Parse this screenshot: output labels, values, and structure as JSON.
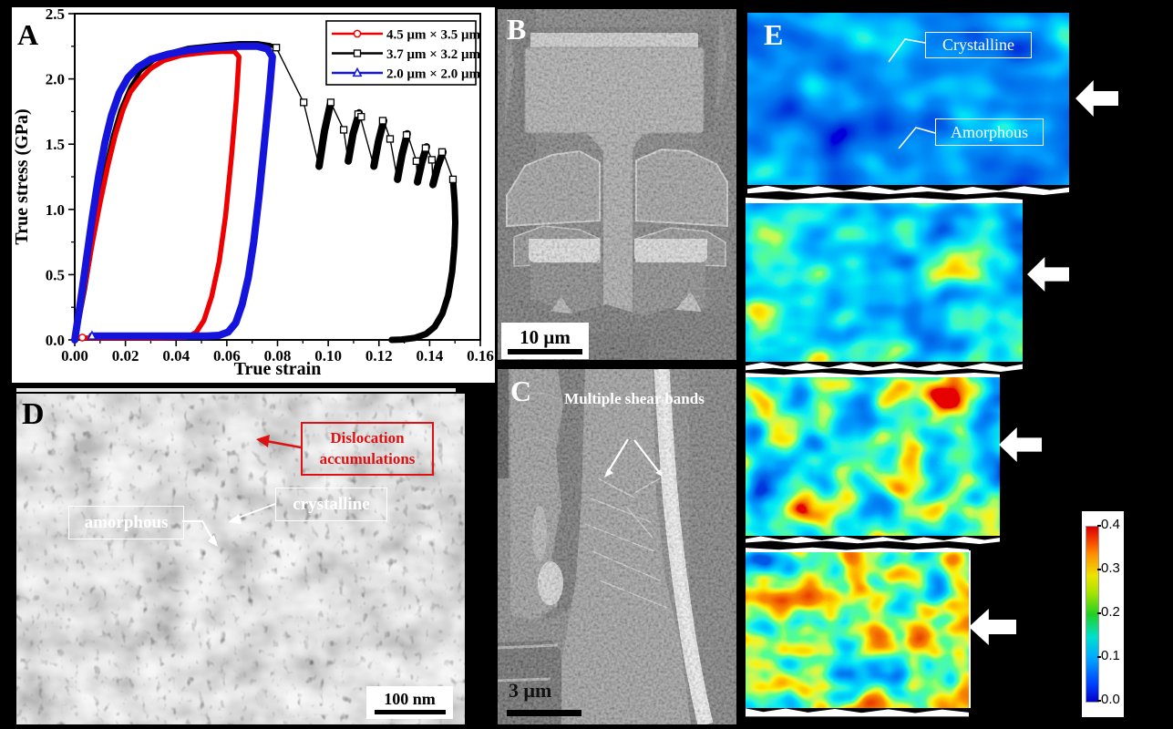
{
  "figure": {
    "panels": {
      "a": {
        "label": "A"
      },
      "b": {
        "label": "B",
        "scale_bar_label": "10 μm"
      },
      "c": {
        "label": "C",
        "annotation": "Multiple shear bands",
        "scale_bar_label": "3 μm"
      },
      "d": {
        "label": "D",
        "dislocation_label": "Dislocation accumulations",
        "crystalline_label": "crystalline",
        "amorphous_label": "amorphous",
        "scale_bar_label": "100 nm",
        "dislocation_color": "#dd1111"
      },
      "e": {
        "label": "E",
        "crystalline_label": "Crystalline",
        "amorphous_label": "Amorphous",
        "colorbar": {
          "min": 0.0,
          "max": 0.4,
          "ticks": [
            "0.4",
            "0.3",
            "0.2",
            "0.1",
            "0.0"
          ]
        }
      }
    }
  },
  "chart_data": {
    "type": "line",
    "title": "",
    "xlabel": "True strain",
    "ylabel": "True stress (GPa)",
    "xlim": [
      0,
      0.16
    ],
    "ylim": [
      0,
      2.5
    ],
    "grid": false,
    "xticks": [
      0,
      0.02,
      0.04,
      0.06,
      0.08,
      0.1,
      0.12,
      0.14,
      0.16
    ],
    "xtick_labels": [
      "0.00",
      "0.02",
      "0.04",
      "0.06",
      "0.08",
      "0.10",
      "0.12",
      "0.14",
      "0.16"
    ],
    "yticks": [
      0,
      0.5,
      1.0,
      1.5,
      2.0,
      2.5
    ],
    "ytick_labels": [
      "0.0",
      "0.5",
      "1.0",
      "1.5",
      "2.0",
      "2.5"
    ],
    "legend": {
      "position": "top-right",
      "entries": [
        {
          "label": "4.5 μm × 3.5 μm",
          "color": "#ee0000",
          "marker": "circle"
        },
        {
          "label": "3.7 μm × 3.2 μm",
          "color": "#000000",
          "marker": "square"
        },
        {
          "label": "2.0 μm × 2.0 μm",
          "color": "#1414dd",
          "marker": "triangle"
        }
      ]
    },
    "series": [
      {
        "name": "3.7um-loading",
        "color": "#000000",
        "width": 4.5,
        "points": [
          [
            0,
            0
          ],
          [
            0.002,
            0.18
          ],
          [
            0.004,
            0.38
          ],
          [
            0.006,
            0.62
          ],
          [
            0.009,
            0.98
          ],
          [
            0.012,
            1.3
          ],
          [
            0.015,
            1.56
          ],
          [
            0.018,
            1.76
          ],
          [
            0.022,
            1.94
          ],
          [
            0.026,
            2.06
          ],
          [
            0.031,
            2.14
          ],
          [
            0.037,
            2.2
          ],
          [
            0.045,
            2.24
          ],
          [
            0.055,
            2.26
          ],
          [
            0.065,
            2.275
          ],
          [
            0.072,
            2.275
          ],
          [
            0.077,
            2.26
          ],
          [
            0.0795,
            2.24
          ]
        ]
      },
      {
        "name": "3.7um-serration-line",
        "color": "#000000",
        "width": 1.4,
        "points": [
          [
            0.0795,
            2.24
          ],
          [
            0.0903,
            1.82
          ],
          [
            0.0964,
            1.33
          ],
          [
            0.101,
            1.82
          ],
          [
            0.1061,
            1.61
          ],
          [
            0.1079,
            1.37
          ],
          [
            0.1122,
            1.74
          ],
          [
            0.118,
            1.33
          ],
          [
            0.1219,
            1.68
          ],
          [
            0.1244,
            1.54
          ],
          [
            0.1273,
            1.23
          ],
          [
            0.1312,
            1.58
          ],
          [
            0.1348,
            1.37
          ],
          [
            0.1352,
            1.21
          ],
          [
            0.1388,
            1.48
          ],
          [
            0.1409,
            1.38
          ],
          [
            0.1413,
            1.19
          ],
          [
            0.1453,
            1.44
          ],
          [
            0.1492,
            1.23
          ]
        ]
      },
      {
        "name": "3.7um-strain-bursts",
        "color": "#000000",
        "width": 8,
        "points": [
          [
            [
              0.0964,
              1.33
            ],
            [
              0.0985,
              1.6
            ],
            [
              0.101,
              1.82
            ]
          ],
          [
            [
              0.1079,
              1.37
            ],
            [
              0.1098,
              1.58
            ],
            [
              0.1122,
              1.74
            ]
          ],
          [
            [
              0.118,
              1.33
            ],
            [
              0.1198,
              1.52
            ],
            [
              0.1219,
              1.68
            ]
          ],
          [
            [
              0.1273,
              1.23
            ],
            [
              0.1291,
              1.42
            ],
            [
              0.1312,
              1.58
            ]
          ],
          [
            [
              0.1352,
              1.21
            ],
            [
              0.1369,
              1.36
            ],
            [
              0.1388,
              1.48
            ]
          ],
          [
            [
              0.1413,
              1.19
            ],
            [
              0.1432,
              1.33
            ],
            [
              0.1453,
              1.44
            ]
          ]
        ]
      },
      {
        "name": "3.7um-unloading",
        "color": "#000000",
        "width": 7,
        "points": [
          [
            0.1492,
            1.23
          ],
          [
            0.1499,
            1.05
          ],
          [
            0.1501,
            0.9
          ],
          [
            0.1498,
            0.72
          ],
          [
            0.1489,
            0.52
          ],
          [
            0.1473,
            0.34
          ],
          [
            0.145,
            0.2
          ],
          [
            0.142,
            0.1
          ],
          [
            0.1385,
            0.045
          ],
          [
            0.134,
            0.015
          ],
          [
            0.129,
            0.003
          ],
          [
            0.125,
            0
          ]
        ]
      },
      {
        "name": "4.5um-loop",
        "color": "#ee0000",
        "width": 5.5,
        "points": [
          [
            0,
            0
          ],
          [
            0.002,
            0.2
          ],
          [
            0.004,
            0.42
          ],
          [
            0.007,
            0.75
          ],
          [
            0.01,
            1.05
          ],
          [
            0.013,
            1.33
          ],
          [
            0.016,
            1.57
          ],
          [
            0.019,
            1.76
          ],
          [
            0.022,
            1.9
          ],
          [
            0.026,
            2.0
          ],
          [
            0.03,
            2.08
          ],
          [
            0.035,
            2.14
          ],
          [
            0.042,
            2.18
          ],
          [
            0.05,
            2.2
          ],
          [
            0.058,
            2.21
          ],
          [
            0.063,
            2.21
          ],
          [
            0.0648,
            2.17
          ],
          [
            0.0638,
            1.85
          ],
          [
            0.0618,
            1.4
          ],
          [
            0.0595,
            0.95
          ],
          [
            0.057,
            0.6
          ],
          [
            0.054,
            0.33
          ],
          [
            0.051,
            0.15
          ],
          [
            0.048,
            0.06
          ],
          [
            0.045,
            0.025
          ],
          [
            0.0435,
            0.018
          ],
          [
            0.035,
            0.015
          ],
          [
            0.02,
            0.015
          ],
          [
            0.008,
            0.015
          ],
          [
            0.003,
            0.015
          ]
        ]
      },
      {
        "name": "2.0um-loop",
        "color": "#1414dd",
        "width": 8,
        "points": [
          [
            0,
            0
          ],
          [
            0.0022,
            0.28
          ],
          [
            0.0045,
            0.6
          ],
          [
            0.007,
            0.95
          ],
          [
            0.0095,
            1.26
          ],
          [
            0.012,
            1.52
          ],
          [
            0.0145,
            1.72
          ],
          [
            0.0175,
            1.89
          ],
          [
            0.021,
            2.01
          ],
          [
            0.025,
            2.09
          ],
          [
            0.03,
            2.15
          ],
          [
            0.037,
            2.19
          ],
          [
            0.045,
            2.22
          ],
          [
            0.055,
            2.24
          ],
          [
            0.065,
            2.25
          ],
          [
            0.072,
            2.25
          ],
          [
            0.076,
            2.23
          ],
          [
            0.078,
            2.17
          ],
          [
            0.0768,
            1.9
          ],
          [
            0.0748,
            1.5
          ],
          [
            0.0727,
            1.1
          ],
          [
            0.0706,
            0.75
          ],
          [
            0.0685,
            0.48
          ],
          [
            0.066,
            0.27
          ],
          [
            0.0635,
            0.13
          ],
          [
            0.0605,
            0.06
          ],
          [
            0.057,
            0.035
          ],
          [
            0.052,
            0.03
          ],
          [
            0.045,
            0.03
          ],
          [
            0.035,
            0.03
          ],
          [
            0.022,
            0.03
          ],
          [
            0.012,
            0.03
          ],
          [
            0.0068,
            0.03
          ]
        ]
      },
      {
        "name": "3.7um-serration-markers",
        "color": "#000000",
        "width": 0,
        "marker": "square",
        "markers": [
          [
            0.0795,
            2.24
          ],
          [
            0.0903,
            1.82
          ],
          [
            0.101,
            1.82
          ],
          [
            0.1061,
            1.61
          ],
          [
            0.1118,
            1.73
          ],
          [
            0.113,
            1.71
          ],
          [
            0.1215,
            1.68
          ],
          [
            0.1244,
            1.54
          ],
          [
            0.1309,
            1.57
          ],
          [
            0.1348,
            1.37
          ],
          [
            0.1384,
            1.47
          ],
          [
            0.1409,
            1.38
          ],
          [
            0.1449,
            1.44
          ],
          [
            0.1492,
            1.23
          ]
        ]
      },
      {
        "name": "4.5um-origin-marker",
        "color": "#ee0000",
        "width": 0,
        "marker": "circle",
        "markers": [
          [
            0.003,
            0.018
          ]
        ]
      },
      {
        "name": "2.0um-origin-marker",
        "color": "#1414dd",
        "width": 0,
        "marker": "triangle",
        "markers": [
          [
            0.0068,
            0.03
          ]
        ]
      }
    ]
  }
}
